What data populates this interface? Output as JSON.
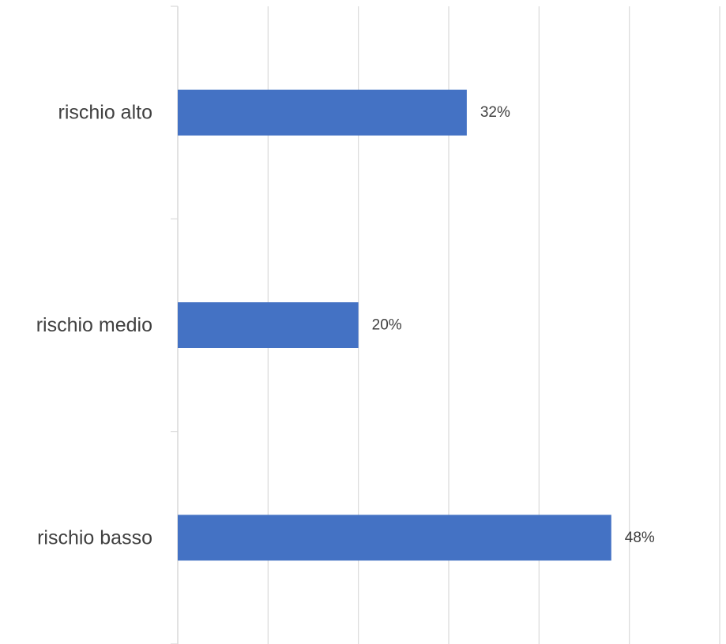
{
  "chart_data": {
    "type": "bar",
    "orientation": "horizontal",
    "categories": [
      "rischio alto",
      "rischio medio",
      "rischio basso"
    ],
    "values": [
      32,
      20,
      48
    ],
    "data_labels": [
      "32%",
      "20%",
      "48%"
    ],
    "unit": "%",
    "xlim": [
      0,
      60
    ],
    "x_major_unit": 10,
    "grid": true,
    "legend": "none",
    "bar_color": "#4472c4"
  }
}
